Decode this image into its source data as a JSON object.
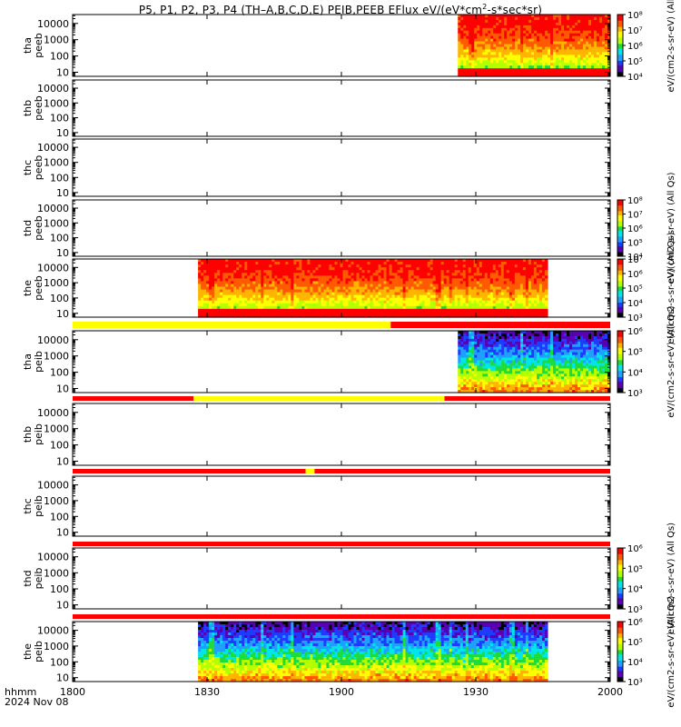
{
  "title": {
    "pre": "P5, P1, P2, P3, P4 (TH–A,B,C,D,E) PEIB,PEEB EFlux eV/(eV*cm",
    "sup": "2",
    "post": "-s*sec*sr)"
  },
  "time_label": {
    "format": "hhmm",
    "date": "2024 Nov 08"
  },
  "chart_data": {
    "type": "heatmap",
    "x_axis": {
      "range": [
        "1800",
        "2000"
      ],
      "ticks": [
        "1800",
        "1830",
        "1900",
        "1930",
        "2000"
      ]
    },
    "y_axis_scale": "log",
    "y_ticks": [
      "10",
      "100",
      "1000",
      "10000"
    ],
    "panels": [
      {
        "id": "tha_peeb",
        "probe": "tha",
        "product": "peeb",
        "data_span": [
          "1926",
          "2000"
        ],
        "colorbar": [
          "10⁴",
          "10⁵",
          "10⁶",
          "10⁷",
          "10⁸"
        ],
        "colorbar_label": "eV/(cm2-s-sr-eV) (All"
      },
      {
        "id": "thb_peeb",
        "probe": "thb",
        "product": "peeb",
        "data_span": null,
        "colorbar": null
      },
      {
        "id": "thc_peeb",
        "probe": "thc",
        "product": "peeb",
        "data_span": null,
        "colorbar": null
      },
      {
        "id": "thd_peeb",
        "probe": "thd",
        "product": "peeb",
        "data_span": null,
        "colorbar": [
          "10⁴",
          "10⁵",
          "10⁶",
          "10⁷",
          "10⁸"
        ],
        "colorbar_label": "eV/(cm2-s-sr-eV) (All Qs)"
      },
      {
        "id": "the_peeb",
        "probe": "the",
        "product": "peeb",
        "data_span": [
          "1828",
          "1946"
        ],
        "colorbar": [
          "10³",
          "10⁴",
          "10⁵",
          "10⁶",
          "10⁷"
        ],
        "colorbar_label": "eV/(cm2-s-sr-eV) (All Qs)"
      },
      {
        "id": "tha_peib",
        "probe": "tha",
        "product": "peib",
        "data_span": [
          "1926",
          "2000"
        ],
        "colorbar": [
          "10³",
          "10⁴",
          "10⁵",
          "10⁶"
        ],
        "colorbar_label": "eV/(cm2-s-sr-eV) (All Qs)"
      },
      {
        "id": "thb_peib",
        "probe": "thb",
        "product": "peib",
        "data_span": null,
        "colorbar": null
      },
      {
        "id": "thc_peib",
        "probe": "thc",
        "product": "peib",
        "data_span": null,
        "colorbar": null
      },
      {
        "id": "thd_peib",
        "probe": "thd",
        "product": "peib",
        "data_span": null,
        "colorbar": [
          "10³",
          "10⁴",
          "10⁵",
          "10⁶"
        ],
        "colorbar_label": "eV/(cm2-s-sr-eV) (All Qs)"
      },
      {
        "id": "the_peib",
        "probe": "the",
        "product": "peib",
        "data_span": [
          "1828",
          "1946"
        ],
        "colorbar": [
          "10³",
          "10⁴",
          "10⁵",
          "10⁶"
        ],
        "colorbar_label": "eV/(cm2-s-sr-eV) (All Qs)"
      }
    ],
    "status_bars": [
      {
        "after_panel": "the_peeb",
        "segments": [
          {
            "from": "1800",
            "to": "1911",
            "color": "#ffff00"
          },
          {
            "from": "1911",
            "to": "2000",
            "color": "#ff0000"
          }
        ]
      },
      {
        "after_panel": "tha_peib",
        "segments": [
          {
            "from": "1800",
            "to": "1827",
            "color": "#ff0000"
          },
          {
            "from": "1827",
            "to": "1923",
            "color": "#ffff00"
          },
          {
            "from": "1923",
            "to": "2000",
            "color": "#ff0000"
          }
        ]
      },
      {
        "after_panel": "thb_peib",
        "segments": [
          {
            "from": "1800",
            "to": "1852",
            "color": "#ff0000"
          },
          {
            "from": "1852",
            "to": "1854",
            "color": "#ffff00"
          },
          {
            "from": "1854",
            "to": "2000",
            "color": "#ff0000"
          }
        ]
      },
      {
        "after_panel": "thc_peib",
        "segments": [
          {
            "from": "1800",
            "to": "2000",
            "color": "#ff0000"
          }
        ]
      },
      {
        "after_panel": "thd_peib",
        "segments": [
          {
            "from": "1800",
            "to": "2000",
            "color": "#ff0000"
          }
        ]
      }
    ],
    "colormap": [
      "#000000",
      "#5a00b4",
      "#1e3cff",
      "#1ea0ff",
      "#00e6e6",
      "#1edc3c",
      "#b4ff00",
      "#ffff00",
      "#ffb400",
      "#ff5a00",
      "#ff0000"
    ]
  }
}
